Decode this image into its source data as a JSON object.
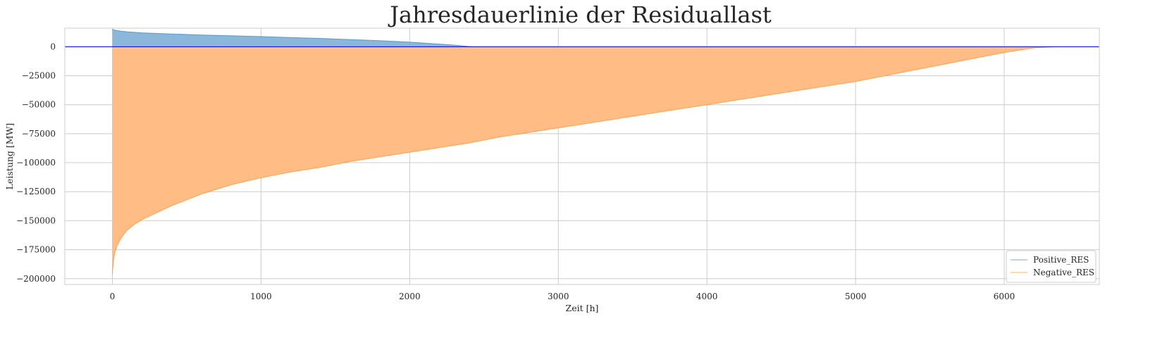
{
  "chart_data": {
    "type": "area",
    "title": "Jahresdauerlinie der Residuallast",
    "xlabel": "Zeit [h]",
    "ylabel": "Leistung [MW]",
    "xlim": [
      -320,
      6640
    ],
    "ylim": [
      -205000,
      16000
    ],
    "xticks": [
      0,
      1000,
      2000,
      3000,
      4000,
      5000,
      6000
    ],
    "yticks": [
      0,
      -25000,
      -50000,
      -75000,
      -100000,
      -125000,
      -150000,
      -175000,
      -200000
    ],
    "xtick_labels": [
      "0",
      "1000",
      "2000",
      "3000",
      "4000",
      "5000",
      "6000"
    ],
    "ytick_labels": [
      "0",
      "−25000",
      "−50000",
      "−75000",
      "−100000",
      "−125000",
      "−150000",
      "−175000",
      "−200000"
    ],
    "grid": true,
    "zero_line": {
      "y": 0,
      "color": "#0000cd"
    },
    "legend": {
      "placement": "lower-right"
    },
    "series": [
      {
        "name": "Positive_RES",
        "color": "#1f77b4",
        "fill_color": "#8bb8da",
        "x": [
          0,
          10,
          50,
          100,
          200,
          400,
          600,
          800,
          1000,
          1200,
          1400,
          1600,
          1800,
          2000,
          2100,
          2200,
          2300,
          2350,
          2400,
          2430
        ],
        "y": [
          15200,
          14500,
          13600,
          12900,
          12000,
          11000,
          10200,
          9500,
          8800,
          8000,
          7200,
          6200,
          5200,
          4000,
          3200,
          2300,
          1400,
          800,
          200,
          0
        ]
      },
      {
        "name": "Negative_RES",
        "color": "#ff7f0e",
        "fill_color": "#ffbd85",
        "x": [
          0,
          5,
          15,
          30,
          50,
          75,
          100,
          150,
          200,
          300,
          400,
          500,
          600,
          700,
          800,
          900,
          1000,
          1200,
          1400,
          1600,
          1800,
          2000,
          2200,
          2400,
          2600,
          2800,
          3000,
          3200,
          3400,
          3600,
          3800,
          4000,
          4200,
          4400,
          4600,
          4800,
          5000,
          5200,
          5400,
          5600,
          5800,
          6000,
          6200,
          6350
        ],
        "y": [
          -196000,
          -187000,
          -178000,
          -172000,
          -167000,
          -162000,
          -158000,
          -153000,
          -149000,
          -143000,
          -137000,
          -132000,
          -127000,
          -123000,
          -119000,
          -116000,
          -113000,
          -108000,
          -104000,
          -99000,
          -95000,
          -91000,
          -87000,
          -83000,
          -78000,
          -74000,
          -70000,
          -66000,
          -62000,
          -58000,
          -54000,
          -50000,
          -46000,
          -42000,
          -38000,
          -34000,
          -30000,
          -25000,
          -20000,
          -15000,
          -10000,
          -5000,
          -1000,
          0
        ]
      }
    ]
  }
}
